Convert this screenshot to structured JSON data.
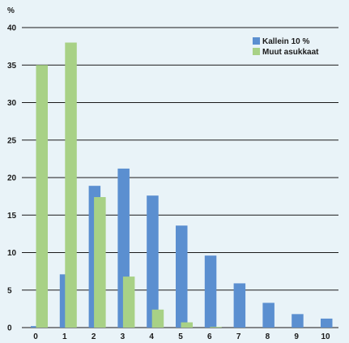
{
  "chart_data": {
    "type": "bar",
    "ylabel": "%",
    "ylim": [
      0,
      40
    ],
    "yticks": [
      0,
      5,
      10,
      15,
      20,
      25,
      30,
      35,
      40
    ],
    "grid": true,
    "legend_position": "top-right",
    "categories": [
      "0",
      "1",
      "2",
      "3",
      "4",
      "5",
      "6",
      "7",
      "8",
      "9",
      "10"
    ],
    "series": [
      {
        "name": "Kallein 10 %",
        "color": "#5b8fd0",
        "values": [
          0.2,
          7.1,
          18.9,
          21.2,
          17.6,
          13.6,
          9.6,
          5.9,
          3.3,
          1.8,
          1.2
        ]
      },
      {
        "name": "Muut asukkaat",
        "color": "#a8d186",
        "values": [
          35.0,
          38.0,
          17.4,
          6.8,
          2.4,
          0.7,
          0.1,
          0,
          0,
          0,
          0
        ]
      }
    ]
  }
}
